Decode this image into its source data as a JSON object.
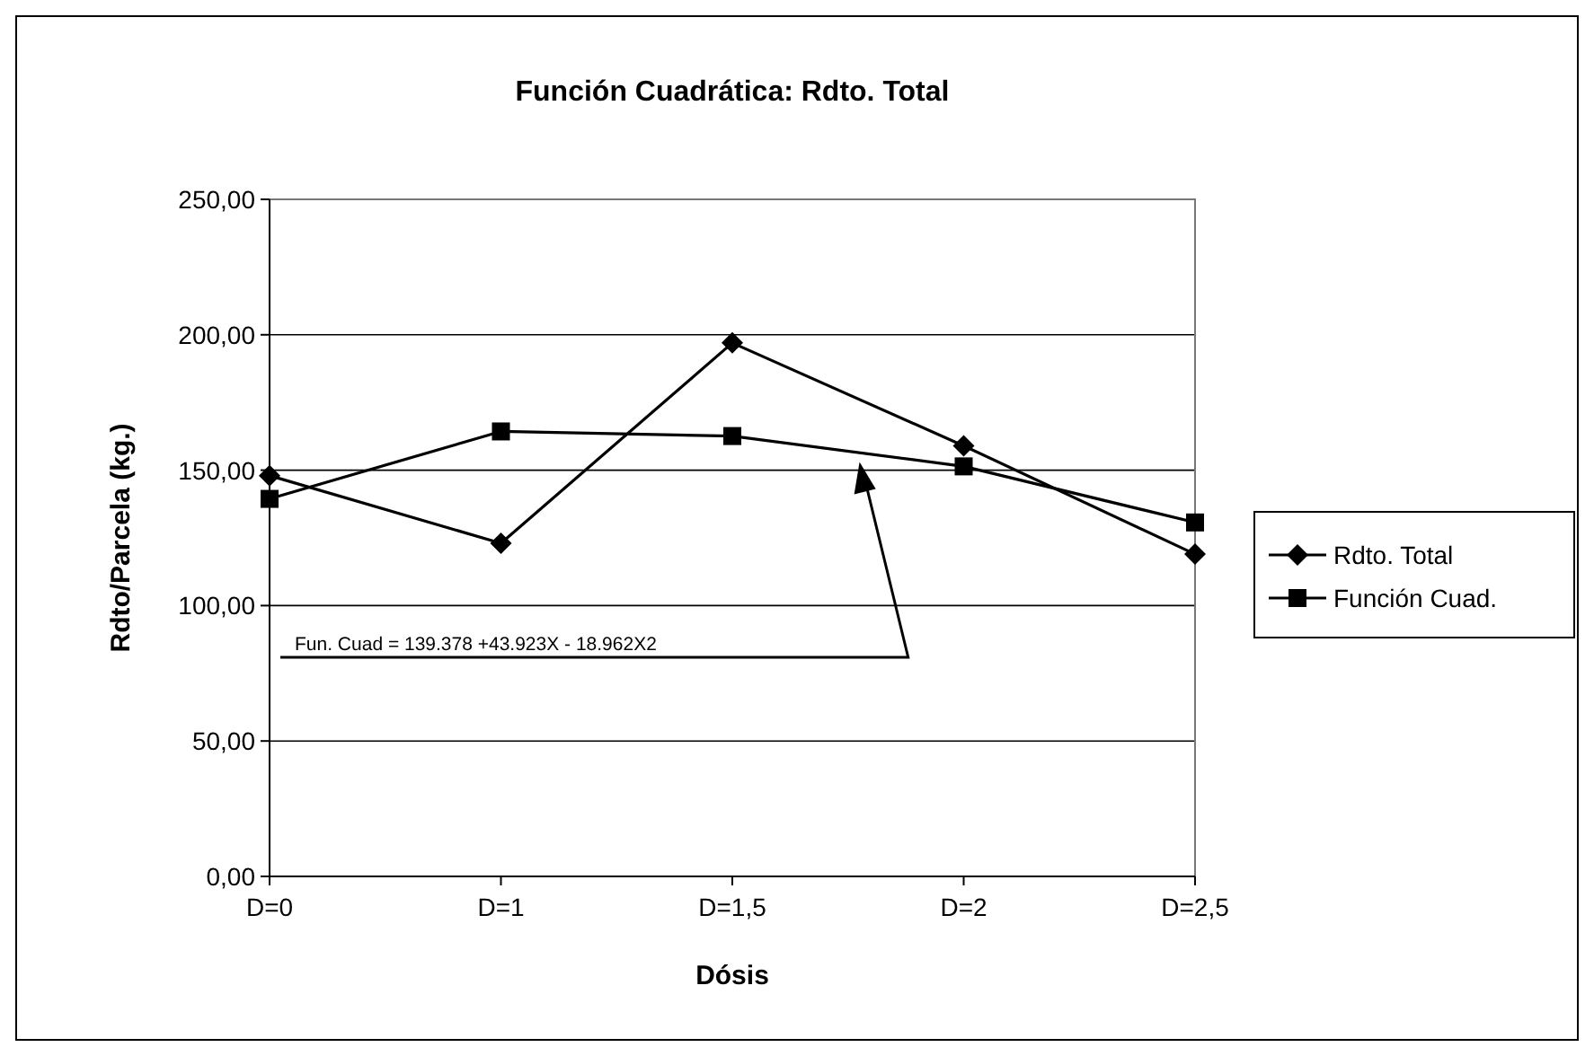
{
  "chart_data": {
    "type": "line",
    "title": "Función Cuadrática: Rdto. Total",
    "xlabel": "Dósis",
    "ylabel": "Rdto/Parcela (kg.)",
    "categories": [
      "D=0",
      "D=1",
      "D=1,5",
      "D=2",
      "D=2,5"
    ],
    "series": [
      {
        "name": "Rdto. Total",
        "color": "#000000",
        "marker": "diamond",
        "values": [
          148,
          123,
          197,
          159,
          119
        ]
      },
      {
        "name": "Función Cuad.",
        "color": "#000000",
        "marker": "square",
        "values": [
          139.4,
          164.3,
          162.6,
          151.4,
          130.7
        ]
      }
    ],
    "ylim": [
      0,
      250
    ],
    "yticks": [
      {
        "value": 0,
        "label": "0,00"
      },
      {
        "value": 50,
        "label": "50,00"
      },
      {
        "value": 100,
        "label": "100,00"
      },
      {
        "value": 150,
        "label": "150,00"
      },
      {
        "value": 200,
        "label": "200,00"
      },
      {
        "value": 250,
        "label": "250,00"
      }
    ],
    "grid": "y",
    "legend": "right",
    "line_style": "solid",
    "annotations": [
      "Fun. Cuad = 139.378 +43.923X - 18.962X2"
    ]
  }
}
